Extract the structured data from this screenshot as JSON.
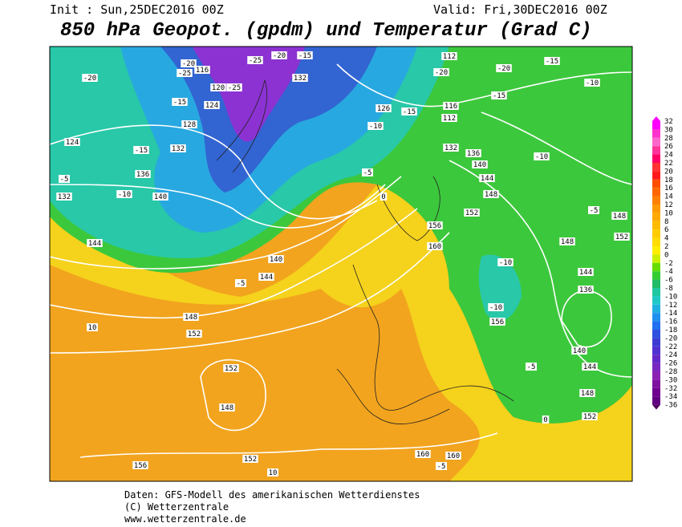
{
  "header": {
    "init": "Init : Sun,25DEC2016 00Z",
    "valid": "Valid: Fri,30DEC2016 00Z",
    "title": "850 hPa Geopot. (gpdm) und Temperatur (Grad C)"
  },
  "legend": {
    "labels": [
      32,
      30,
      28,
      26,
      24,
      22,
      20,
      18,
      16,
      14,
      12,
      10,
      8,
      6,
      4,
      2,
      0,
      -2,
      -4,
      -6,
      -8,
      -10,
      -12,
      -14,
      -16,
      -18,
      -20,
      -22,
      -24,
      -26,
      -28,
      -30,
      -32,
      -34,
      -36
    ]
  },
  "map": {
    "labels": [
      "-20",
      "-25",
      "116",
      "-25",
      "-20",
      "-15",
      "132",
      "-25",
      "120",
      "124",
      "-15",
      "128",
      "132",
      "-15",
      "124",
      "136",
      "140",
      "-5",
      "132",
      "-10",
      "144",
      "-20",
      "-20",
      "112",
      "-20",
      "-15",
      "-10",
      "-15",
      "-15",
      "126",
      "-10",
      "116",
      "112",
      "132",
      "136",
      "140",
      "144",
      "148",
      "-10",
      "152",
      "156",
      "160",
      "-5",
      "0",
      "140",
      "144",
      "-5",
      "148",
      "152",
      "10",
      "152",
      "148",
      "-10",
      "-10",
      "156",
      "136",
      "144",
      "140",
      "144",
      "-5",
      "148",
      "152",
      "0",
      "160",
      "160",
      "-5",
      "152",
      "10",
      "156",
      "-5",
      "148",
      "152",
      "148"
    ]
  },
  "footer": {
    "line1": "Daten: GFS-Modell des amerikanischen Wetterdienstes",
    "line2": "(C) Wetterzentrale",
    "line3": "www.wetterzentrale.de"
  }
}
